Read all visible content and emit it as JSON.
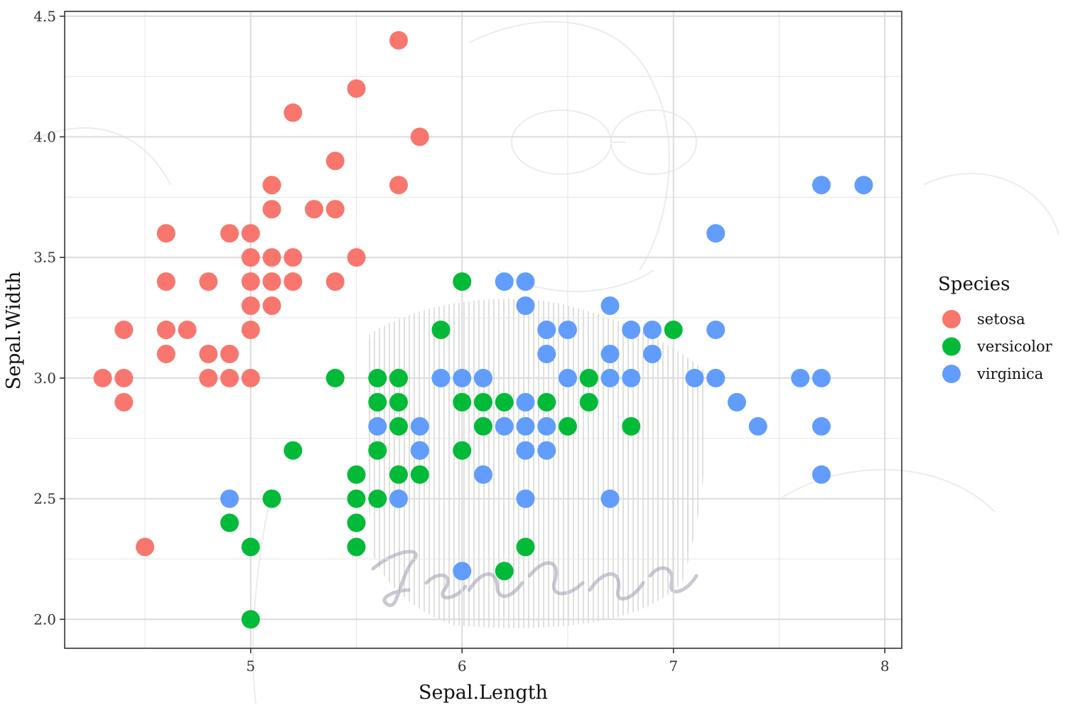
{
  "chart_data": {
    "type": "scatter",
    "xlabel": "Sepal.Length",
    "ylabel": "Sepal.Width",
    "xlim": [
      4.12,
      8.08
    ],
    "ylim": [
      1.88,
      4.52
    ],
    "x_ticks": [
      5,
      6,
      7,
      8
    ],
    "x_tick_labels": [
      "5",
      "6",
      "7",
      "8"
    ],
    "y_ticks": [
      2.0,
      2.5,
      3.0,
      3.5,
      4.0,
      4.5
    ],
    "y_tick_labels": [
      "2.0",
      "2.5",
      "3.0",
      "3.5",
      "4.0",
      "4.5"
    ],
    "grid": true,
    "legend": {
      "title": "Species",
      "placement": "right"
    },
    "series": [
      {
        "name": "setosa",
        "color": "#F8766D",
        "points": [
          [
            5.7,
            4.4
          ],
          [
            5.5,
            4.2
          ],
          [
            5.2,
            4.1
          ],
          [
            5.8,
            4.0
          ],
          [
            5.4,
            3.9
          ],
          [
            5.1,
            3.8
          ],
          [
            5.7,
            3.8
          ],
          [
            5.1,
            3.7
          ],
          [
            5.3,
            3.7
          ],
          [
            5.4,
            3.7
          ],
          [
            4.6,
            3.6
          ],
          [
            4.9,
            3.6
          ],
          [
            5.0,
            3.6
          ],
          [
            5.0,
            3.5
          ],
          [
            5.1,
            3.5
          ],
          [
            5.2,
            3.5
          ],
          [
            5.5,
            3.5
          ],
          [
            4.6,
            3.4
          ],
          [
            4.8,
            3.4
          ],
          [
            5.0,
            3.4
          ],
          [
            5.1,
            3.4
          ],
          [
            5.2,
            3.4
          ],
          [
            5.4,
            3.4
          ],
          [
            5.0,
            3.3
          ],
          [
            5.1,
            3.3
          ],
          [
            4.4,
            3.2
          ],
          [
            4.6,
            3.2
          ],
          [
            4.7,
            3.2
          ],
          [
            5.0,
            3.2
          ],
          [
            4.6,
            3.1
          ],
          [
            4.8,
            3.1
          ],
          [
            4.9,
            3.1
          ],
          [
            4.3,
            3.0
          ],
          [
            4.4,
            3.0
          ],
          [
            4.8,
            3.0
          ],
          [
            4.9,
            3.0
          ],
          [
            5.0,
            3.0
          ],
          [
            4.4,
            2.9
          ],
          [
            4.5,
            2.3
          ]
        ]
      },
      {
        "name": "versicolor",
        "color": "#00BA38",
        "points": [
          [
            6.0,
            3.4
          ],
          [
            5.9,
            3.2
          ],
          [
            7.0,
            3.2
          ],
          [
            5.4,
            3.0
          ],
          [
            5.6,
            3.0
          ],
          [
            5.7,
            3.0
          ],
          [
            6.6,
            3.0
          ],
          [
            5.6,
            2.9
          ],
          [
            5.7,
            2.9
          ],
          [
            6.0,
            2.9
          ],
          [
            6.1,
            2.9
          ],
          [
            6.2,
            2.9
          ],
          [
            6.4,
            2.9
          ],
          [
            6.6,
            2.9
          ],
          [
            5.7,
            2.8
          ],
          [
            6.1,
            2.8
          ],
          [
            6.5,
            2.8
          ],
          [
            6.8,
            2.8
          ],
          [
            5.2,
            2.7
          ],
          [
            5.6,
            2.7
          ],
          [
            5.8,
            2.7
          ],
          [
            6.0,
            2.7
          ],
          [
            5.5,
            2.6
          ],
          [
            5.7,
            2.6
          ],
          [
            5.8,
            2.6
          ],
          [
            5.1,
            2.5
          ],
          [
            5.5,
            2.5
          ],
          [
            5.6,
            2.5
          ],
          [
            4.9,
            2.4
          ],
          [
            5.5,
            2.4
          ],
          [
            5.0,
            2.3
          ],
          [
            5.5,
            2.3
          ],
          [
            6.3,
            2.3
          ],
          [
            6.2,
            2.2
          ],
          [
            5.0,
            2.0
          ]
        ]
      },
      {
        "name": "virginica",
        "color": "#619CFF",
        "points": [
          [
            7.7,
            3.8
          ],
          [
            7.9,
            3.8
          ],
          [
            7.2,
            3.6
          ],
          [
            6.2,
            3.4
          ],
          [
            6.3,
            3.4
          ],
          [
            6.3,
            3.3
          ],
          [
            6.7,
            3.3
          ],
          [
            6.4,
            3.2
          ],
          [
            6.5,
            3.2
          ],
          [
            6.8,
            3.2
          ],
          [
            6.9,
            3.2
          ],
          [
            7.2,
            3.2
          ],
          [
            6.4,
            3.1
          ],
          [
            6.7,
            3.1
          ],
          [
            6.9,
            3.1
          ],
          [
            5.9,
            3.0
          ],
          [
            6.0,
            3.0
          ],
          [
            6.1,
            3.0
          ],
          [
            6.5,
            3.0
          ],
          [
            6.7,
            3.0
          ],
          [
            6.8,
            3.0
          ],
          [
            7.1,
            3.0
          ],
          [
            7.2,
            3.0
          ],
          [
            7.6,
            3.0
          ],
          [
            7.7,
            3.0
          ],
          [
            6.3,
            2.9
          ],
          [
            7.3,
            2.9
          ],
          [
            5.6,
            2.8
          ],
          [
            5.8,
            2.8
          ],
          [
            6.2,
            2.8
          ],
          [
            6.3,
            2.8
          ],
          [
            6.4,
            2.8
          ],
          [
            7.4,
            2.8
          ],
          [
            7.7,
            2.8
          ],
          [
            5.8,
            2.7
          ],
          [
            6.3,
            2.7
          ],
          [
            6.4,
            2.7
          ],
          [
            6.1,
            2.6
          ],
          [
            7.7,
            2.6
          ],
          [
            4.9,
            2.5
          ],
          [
            5.7,
            2.5
          ],
          [
            6.3,
            2.5
          ],
          [
            6.7,
            2.5
          ],
          [
            6.0,
            2.2
          ]
        ]
      }
    ]
  }
}
